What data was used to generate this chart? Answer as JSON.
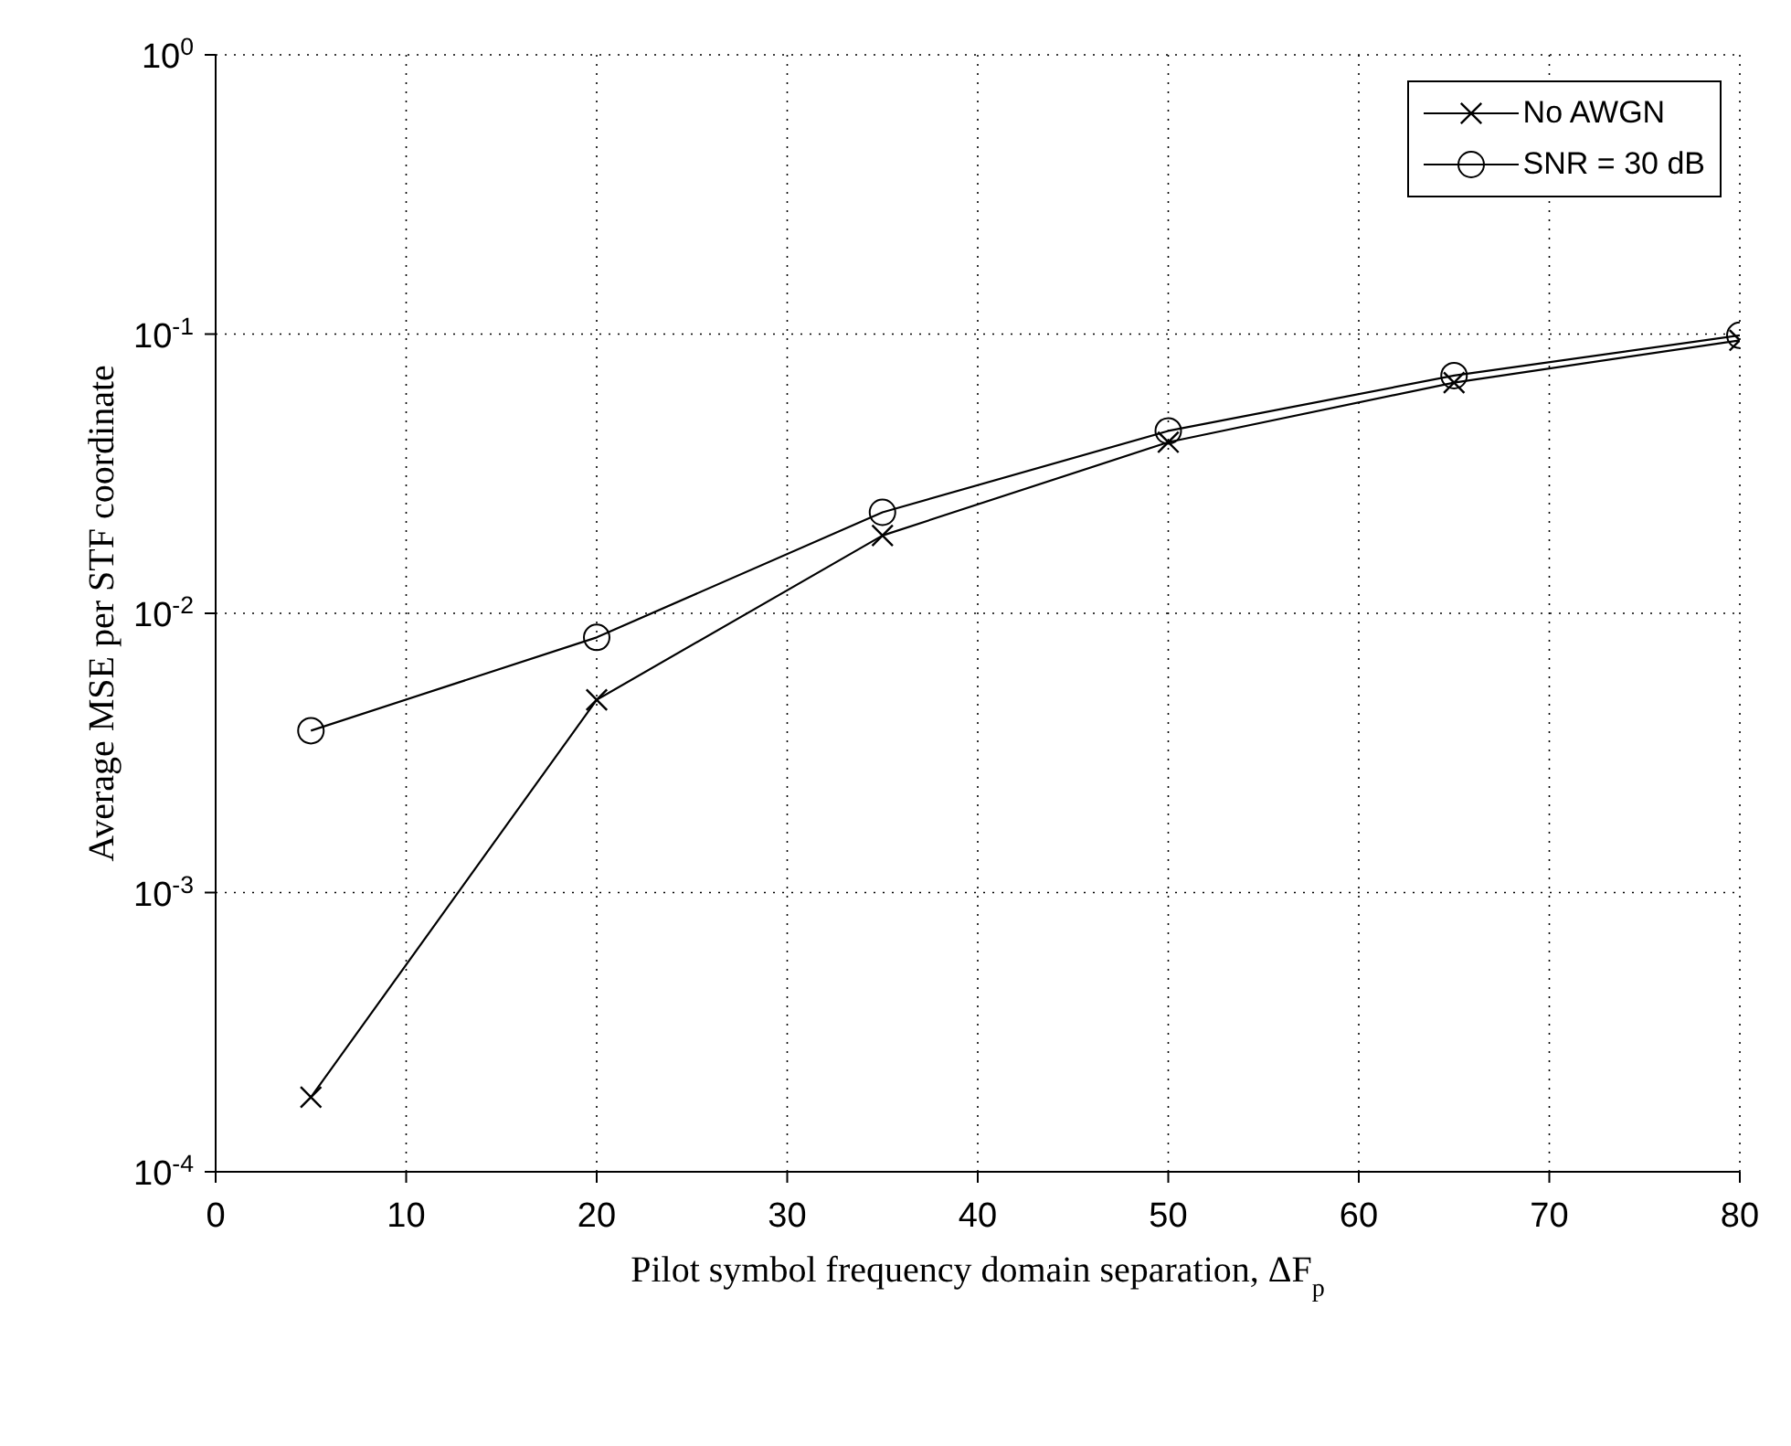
{
  "chart_data": {
    "type": "line",
    "xlabel": "Pilot symbol frequency domain separation, ΔF$_{p}$",
    "ylabel": "Average MSE per STF coordinate",
    "x": [
      5,
      20,
      35,
      50,
      65,
      80
    ],
    "series": [
      {
        "name": "No AWGN",
        "color": "#000000",
        "marker": "cross",
        "values": [
          0.000185,
          0.0049,
          0.019,
          0.041,
          0.067,
          0.095
        ]
      },
      {
        "name": "SNR = 30 dB",
        "color": "#000000",
        "marker": "circle",
        "values": [
          0.0038,
          0.0082,
          0.023,
          0.045,
          0.071,
          0.099
        ]
      }
    ],
    "log": "y",
    "xlim": [
      0,
      80
    ],
    "xticks": [
      0,
      10,
      20,
      30,
      40,
      50,
      60,
      70,
      80
    ],
    "ylim": [
      0.0001,
      1
    ],
    "yticks": [
      {
        "value": 0.0001,
        "label": "10$^{-4}$"
      },
      {
        "value": 0.001,
        "label": "10$^{-3}$"
      },
      {
        "value": 0.01,
        "label": "10$^{-2}$"
      },
      {
        "value": 0.1,
        "label": "10$^{-1}$"
      },
      {
        "value": 1,
        "label": "10$^{0}$"
      }
    ],
    "grid": true,
    "legend": "top right",
    "line_style": "solid"
  }
}
